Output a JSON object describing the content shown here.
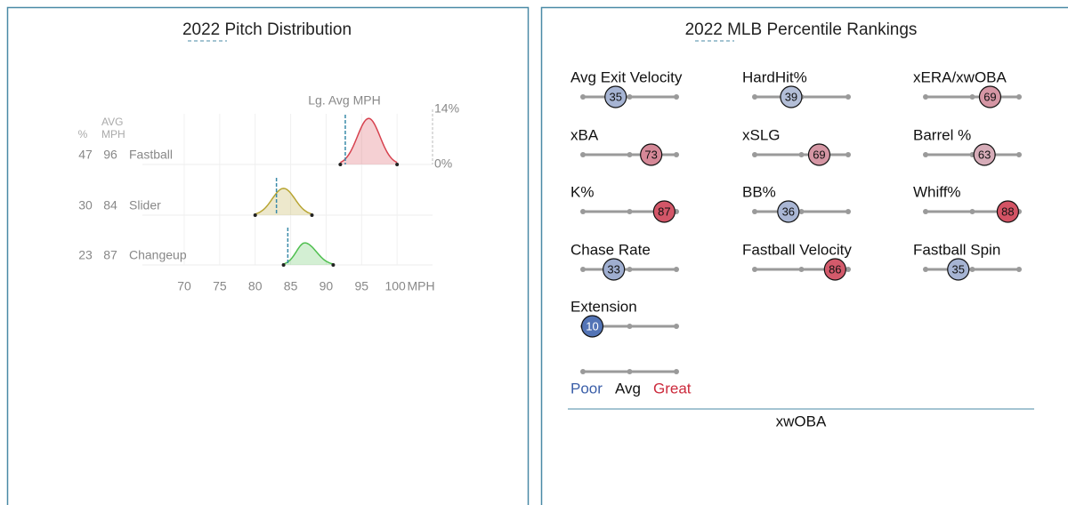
{
  "pitch_distribution": {
    "title": "2022 Pitch Distribution",
    "pct_header": "%",
    "velo_header": [
      "AVG",
      "MPH"
    ],
    "lg_avg_label": "Lg. Avg MPH",
    "x_unit": "MPH",
    "xlim": [
      70,
      105
    ],
    "xticks": [
      70,
      75,
      80,
      85,
      90,
      95,
      100
    ],
    "density_ylim": [
      0,
      14
    ],
    "density_ticks": [
      {
        "value": 14,
        "label": "14%"
      },
      {
        "value": 0,
        "label": "0%"
      }
    ],
    "pitches": [
      {
        "name": "Fastball",
        "pct": 47,
        "avg_mph": 96,
        "min_mph": 92,
        "max_mph": 100,
        "peak_density": 11.7,
        "lg_avg_mph": 92.7,
        "color": "#d7424f"
      },
      {
        "name": "Slider",
        "pct": 30,
        "avg_mph": 84,
        "min_mph": 80,
        "max_mph": 88,
        "peak_density": 6.8,
        "lg_avg_mph": 83,
        "color": "#b8a533"
      },
      {
        "name": "Changeup",
        "pct": 23,
        "avg_mph": 87,
        "min_mph": 84,
        "max_mph": 91,
        "peak_density": 5.6,
        "lg_avg_mph": 84.6,
        "color": "#4fbf4f"
      }
    ]
  },
  "percentile_rankings": {
    "title": "2022 MLB Percentile Rankings",
    "metrics": [
      {
        "label": "Avg Exit Velocity",
        "percentile": 35
      },
      {
        "label": "HardHit%",
        "percentile": 39
      },
      {
        "label": "xERA/xwOBA",
        "percentile": 69
      },
      {
        "label": "xBA",
        "percentile": 73
      },
      {
        "label": "xSLG",
        "percentile": 69
      },
      {
        "label": "Barrel %",
        "percentile": 63
      },
      {
        "label": "K%",
        "percentile": 87
      },
      {
        "label": "BB%",
        "percentile": 36
      },
      {
        "label": "Whiff%",
        "percentile": 88
      },
      {
        "label": "Chase Rate",
        "percentile": 33
      },
      {
        "label": "Fastball Velocity",
        "percentile": 86
      },
      {
        "label": "Fastball Spin",
        "percentile": 35
      },
      {
        "label": "Extension",
        "percentile": 10
      }
    ],
    "legend": {
      "poor": "Poor",
      "avg": "Avg",
      "great": "Great"
    },
    "footer": "xwOBA"
  }
}
